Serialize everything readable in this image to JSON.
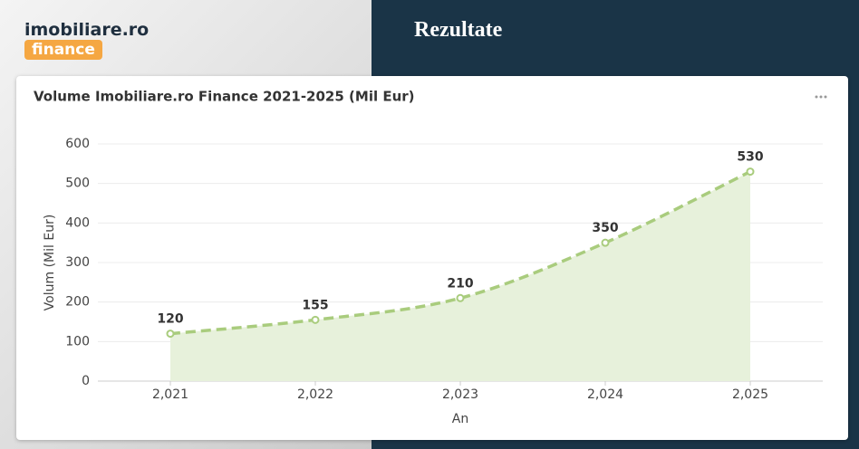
{
  "header": {
    "logo_text": "imobiliare.ro",
    "logo_badge": "finance",
    "title": "Rezultate"
  },
  "chart_data": {
    "type": "line",
    "title": "Volume Imobiliare.ro Finance 2021-2025 (Mil Eur)",
    "x_label": "An",
    "y_label": "Volum (Mil Eur)",
    "x": [
      2021,
      2022,
      2023,
      2024,
      2025
    ],
    "values": [
      120,
      155,
      210,
      350,
      530
    ],
    "color": "#a9cc7d",
    "area_color": "#e7f1db",
    "line_style": "dashed",
    "xlim": [
      2020.5,
      2025.5
    ],
    "xticks": [
      {
        "value": 2021,
        "label": "2,021"
      },
      {
        "value": 2022,
        "label": "2,022"
      },
      {
        "value": 2023,
        "label": "2,023"
      },
      {
        "value": 2024,
        "label": "2,024"
      },
      {
        "value": 2025,
        "label": "2,025"
      }
    ],
    "ylim": [
      0,
      600
    ],
    "yticks": [
      0,
      100,
      200,
      300,
      400,
      500,
      600
    ],
    "grid": true
  }
}
